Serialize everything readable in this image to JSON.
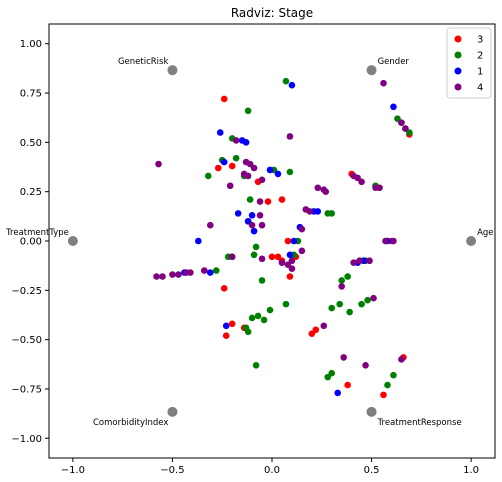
{
  "chart_data": {
    "type": "scatter",
    "title": "Radviz: Stage",
    "xlabel": "",
    "ylabel": "",
    "xlim": [
      -1.12,
      1.12
    ],
    "ylim": [
      -1.1,
      1.1
    ],
    "xticks": [
      -1.0,
      -0.5,
      0.0,
      0.5,
      1.0
    ],
    "xtick_labels": [
      "−1.0",
      "−0.5",
      "0.0",
      "0.5",
      "1.0"
    ],
    "yticks": [
      1.0,
      0.75,
      0.5,
      0.25,
      0.0,
      -0.25,
      -0.5,
      -0.75,
      -1.0
    ],
    "ytick_labels": [
      "1.00",
      "0.75",
      "0.50",
      "0.25",
      "0.00",
      "−0.25",
      "−0.50",
      "−0.75",
      "−1.00"
    ],
    "grid": false,
    "legend_position": "top-right",
    "anchor_color": "#808080",
    "anchors": [
      {
        "name": "Age",
        "x": 1.0,
        "y": 0.0
      },
      {
        "name": "Gender",
        "x": 0.5,
        "y": 0.866
      },
      {
        "name": "GeneticRisk",
        "x": -0.5,
        "y": 0.866
      },
      {
        "name": "TreatmentType",
        "x": -1.0,
        "y": 0.0
      },
      {
        "name": "ComorbidityIndex",
        "x": -0.5,
        "y": -0.866
      },
      {
        "name": "TreatmentResponse",
        "x": 0.5,
        "y": -0.866
      }
    ],
    "series": [
      {
        "name": "3",
        "color": "#ff0000",
        "points": [
          [
            -0.24,
            0.72
          ],
          [
            0.69,
            0.54
          ],
          [
            -0.27,
            0.37
          ],
          [
            -0.2,
            0.38
          ],
          [
            -0.07,
            0.3
          ],
          [
            -0.02,
            0.2
          ],
          [
            0.08,
            0.0
          ],
          [
            0.05,
            -0.1
          ],
          [
            0.0,
            -0.08
          ],
          [
            0.03,
            -0.08
          ],
          [
            0.09,
            -0.18
          ],
          [
            0.12,
            -0.08
          ],
          [
            -0.24,
            -0.24
          ],
          [
            -0.2,
            -0.42
          ],
          [
            -0.23,
            -0.48
          ],
          [
            -0.14,
            -0.44
          ],
          [
            0.2,
            -0.47
          ],
          [
            0.22,
            -0.45
          ],
          [
            0.38,
            -0.73
          ],
          [
            0.56,
            -0.78
          ],
          [
            0.66,
            -0.59
          ],
          [
            0.6,
            0.0
          ],
          [
            0.05,
            0.21
          ],
          [
            0.4,
            0.34
          ],
          [
            -0.12,
            0.1
          ]
        ]
      },
      {
        "name": "2",
        "color": "#008000",
        "points": [
          [
            0.07,
            0.81
          ],
          [
            -0.12,
            0.66
          ],
          [
            -0.2,
            0.52
          ],
          [
            -0.25,
            0.41
          ],
          [
            -0.18,
            0.42
          ],
          [
            -0.32,
            0.33
          ],
          [
            0.09,
            0.35
          ],
          [
            -0.14,
            0.33
          ],
          [
            -0.11,
            0.21
          ],
          [
            0.01,
            0.36
          ],
          [
            0.28,
            0.14
          ],
          [
            0.3,
            0.14
          ],
          [
            0.52,
            0.28
          ],
          [
            0.63,
            0.62
          ],
          [
            0.65,
            0.6
          ],
          [
            0.67,
            0.57
          ],
          [
            0.69,
            0.55
          ],
          [
            -0.22,
            -0.08
          ],
          [
            -0.28,
            -0.15
          ],
          [
            -0.2,
            -0.08
          ],
          [
            -0.09,
            -0.07
          ],
          [
            -0.05,
            -0.2
          ],
          [
            -0.08,
            -0.03
          ],
          [
            0.07,
            -0.32
          ],
          [
            -0.01,
            -0.35
          ],
          [
            -0.07,
            -0.38
          ],
          [
            -0.04,
            -0.4
          ],
          [
            -0.1,
            -0.39
          ],
          [
            -0.13,
            -0.44
          ],
          [
            -0.12,
            -0.46
          ],
          [
            -0.08,
            -0.63
          ],
          [
            0.28,
            -0.69
          ],
          [
            0.3,
            -0.67
          ],
          [
            0.35,
            -0.2
          ],
          [
            0.38,
            -0.18
          ],
          [
            0.3,
            -0.34
          ],
          [
            0.34,
            -0.32
          ],
          [
            0.39,
            -0.36
          ],
          [
            0.45,
            -0.32
          ],
          [
            0.48,
            -0.3
          ],
          [
            0.58,
            -0.73
          ],
          [
            0.61,
            -0.68
          ],
          [
            0.13,
            0.0
          ],
          [
            0.11,
            -0.07
          ],
          [
            0.47,
            -0.1
          ]
        ]
      },
      {
        "name": "1",
        "color": "#0000ff",
        "points": [
          [
            0.1,
            0.79
          ],
          [
            -0.26,
            0.55
          ],
          [
            -0.15,
            0.51
          ],
          [
            -0.13,
            0.5
          ],
          [
            0.61,
            0.68
          ],
          [
            -0.24,
            0.4
          ],
          [
            -0.01,
            0.36
          ],
          [
            0.03,
            0.34
          ],
          [
            -0.17,
            0.14
          ],
          [
            -0.1,
            0.13
          ],
          [
            0.21,
            0.15
          ],
          [
            0.23,
            0.15
          ],
          [
            -0.09,
            0.05
          ],
          [
            -0.37,
            0.0
          ],
          [
            0.11,
            0.0
          ],
          [
            -0.31,
            -0.16
          ],
          [
            -0.44,
            -0.16
          ],
          [
            -0.23,
            -0.43
          ],
          [
            0.33,
            -0.77
          ],
          [
            0.43,
            -0.11
          ],
          [
            0.46,
            -0.1
          ],
          [
            0.58,
            0.0
          ],
          [
            0.14,
            0.07
          ],
          [
            0.09,
            -0.07
          ],
          [
            -0.12,
            0.1
          ]
        ]
      },
      {
        "name": "4",
        "color": "#800080",
        "points": [
          [
            -0.57,
            0.39
          ],
          [
            0.56,
            0.8
          ],
          [
            0.09,
            0.53
          ],
          [
            -0.18,
            0.51
          ],
          [
            -0.13,
            0.4
          ],
          [
            -0.11,
            0.39
          ],
          [
            -0.09,
            0.37
          ],
          [
            -0.14,
            0.34
          ],
          [
            -0.12,
            0.33
          ],
          [
            -0.21,
            0.28
          ],
          [
            -0.05,
            0.31
          ],
          [
            0.23,
            0.27
          ],
          [
            0.26,
            0.26
          ],
          [
            0.27,
            0.25
          ],
          [
            0.41,
            0.33
          ],
          [
            0.43,
            0.32
          ],
          [
            0.45,
            0.3
          ],
          [
            0.52,
            0.27
          ],
          [
            0.54,
            0.27
          ],
          [
            0.65,
            0.6
          ],
          [
            0.67,
            0.57
          ],
          [
            0.17,
            0.16
          ],
          [
            0.19,
            0.15
          ],
          [
            -0.06,
            0.2
          ],
          [
            -0.06,
            0.13
          ],
          [
            -0.1,
            0.08
          ],
          [
            -0.05,
            0.08
          ],
          [
            -0.31,
            0.08
          ],
          [
            0.15,
            0.06
          ],
          [
            -0.05,
            -0.09
          ],
          [
            0.05,
            -0.11
          ],
          [
            0.08,
            -0.12
          ],
          [
            0.1,
            -0.1
          ],
          [
            0.15,
            -0.05
          ],
          [
            0.1,
            -0.14
          ],
          [
            -0.58,
            -0.18
          ],
          [
            -0.55,
            -0.18
          ],
          [
            -0.5,
            -0.17
          ],
          [
            -0.47,
            -0.17
          ],
          [
            -0.43,
            -0.16
          ],
          [
            -0.41,
            -0.16
          ],
          [
            -0.34,
            -0.15
          ],
          [
            -0.2,
            -0.08
          ],
          [
            0.26,
            -0.43
          ],
          [
            0.36,
            -0.59
          ],
          [
            0.47,
            -0.63
          ],
          [
            0.51,
            -0.29
          ],
          [
            0.35,
            -0.23
          ],
          [
            0.41,
            -0.11
          ],
          [
            0.44,
            -0.1
          ],
          [
            0.49,
            -0.1
          ],
          [
            0.61,
            0.0
          ],
          [
            0.57,
            0.0
          ],
          [
            0.65,
            -0.6
          ]
        ]
      }
    ]
  }
}
